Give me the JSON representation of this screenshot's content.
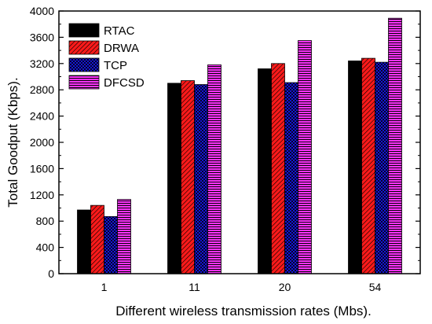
{
  "chart_data": {
    "type": "bar",
    "title": "",
    "xlabel": "Different wireless transmission rates (Mbs).",
    "ylabel": "Total Goodput (Kbps).",
    "ylim": [
      0,
      4000
    ],
    "yticks": [
      0,
      400,
      800,
      1200,
      1600,
      2000,
      2400,
      2800,
      3200,
      3600,
      4000
    ],
    "categories": [
      "1",
      "11",
      "20",
      "54"
    ],
    "series": [
      {
        "name": "RTAC",
        "color": "#000000",
        "hatch": "none",
        "values": [
          970,
          2900,
          3120,
          3240
        ]
      },
      {
        "name": "DRWA",
        "color": "#ff1a1a",
        "hatch": "diagonal",
        "values": [
          1040,
          2940,
          3200,
          3280
        ]
      },
      {
        "name": "TCP",
        "color": "#1a1aff",
        "hatch": "cross",
        "values": [
          870,
          2880,
          2910,
          3220
        ]
      },
      {
        "name": "DFCSD",
        "color": "#ff33ff",
        "hatch": "horizontal",
        "values": [
          1130,
          3180,
          3550,
          3890
        ]
      }
    ],
    "legend_position": "top-left",
    "grid": false
  }
}
